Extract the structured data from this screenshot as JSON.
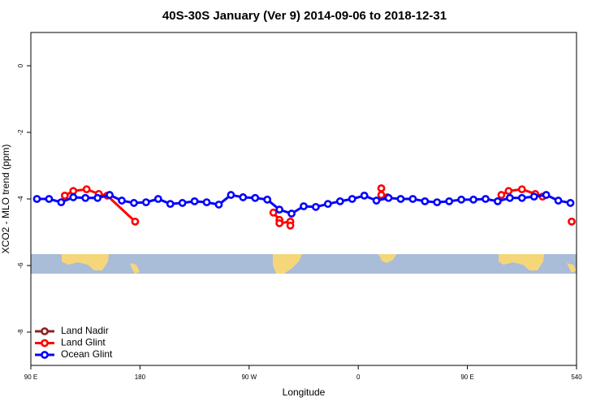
{
  "chart_data": {
    "type": "line",
    "title": "40S-30S January (Ver 9)   2014-09-06 to 2018-12-31",
    "xlabel": "Longitude",
    "ylabel": "XCO2 - MLO trend (ppm)",
    "xlim": [
      90,
      540
    ],
    "xticks": [
      {
        "value": 90,
        "label": "90 E"
      },
      180,
      {
        "value": 270,
        "label": "90 W"
      },
      {
        "value": 360,
        "label": "0"
      },
      {
        "value": 450,
        "label": "90 E"
      },
      540
    ],
    "ylim": [
      -9,
      1
    ],
    "yticks": [
      0,
      -2,
      -4,
      -6,
      -8
    ],
    "legend": "lower left",
    "series": [
      {
        "name": "Land Nadir",
        "color": "#8b2323",
        "x": [],
        "values": []
      },
      {
        "name": "Land Glint",
        "color": "#ff0000",
        "x": [
          118,
          125,
          136,
          146,
          153,
          176,
          null,
          290,
          295,
          295,
          304,
          304,
          null,
          379,
          379,
          384,
          null,
          478,
          484,
          495,
          506,
          512,
          null,
          536
        ],
        "values": [
          -3.9,
          -3.76,
          -3.71,
          -3.85,
          -3.9,
          -4.68,
          null,
          -4.41,
          -4.63,
          -4.73,
          -4.68,
          -4.8,
          null,
          -3.68,
          -3.88,
          -3.95,
          null,
          -3.88,
          -3.76,
          -3.71,
          -3.85,
          -3.93,
          null,
          -4.68
        ]
      },
      {
        "name": "Ocean Glint",
        "color": "#0000ff",
        "x": [
          95,
          105,
          115,
          125,
          135,
          145,
          155,
          165,
          175,
          185,
          195,
          205,
          215,
          225,
          235,
          245,
          255,
          265,
          275,
          285,
          295,
          305,
          315,
          325,
          335,
          345,
          355,
          365,
          375,
          385,
          395,
          405,
          415,
          425,
          435,
          445,
          455,
          465,
          475,
          485,
          495,
          505,
          515,
          525,
          535
        ],
        "values": [
          -4.0,
          -4.0,
          -4.1,
          -3.95,
          -3.97,
          -3.97,
          -3.88,
          -4.05,
          -4.12,
          -4.1,
          -4.0,
          -4.15,
          -4.12,
          -4.07,
          -4.1,
          -4.17,
          -3.88,
          -3.95,
          -3.97,
          -4.02,
          -4.32,
          -4.44,
          -4.22,
          -4.24,
          -4.15,
          -4.07,
          -4.0,
          -3.9,
          -4.05,
          -3.97,
          -4.0,
          -4.0,
          -4.07,
          -4.1,
          -4.07,
          -4.02,
          -4.02,
          -4.0,
          -4.07,
          -3.97,
          -3.97,
          -3.93,
          -3.88,
          -4.05,
          -4.12
        ]
      }
    ]
  }
}
